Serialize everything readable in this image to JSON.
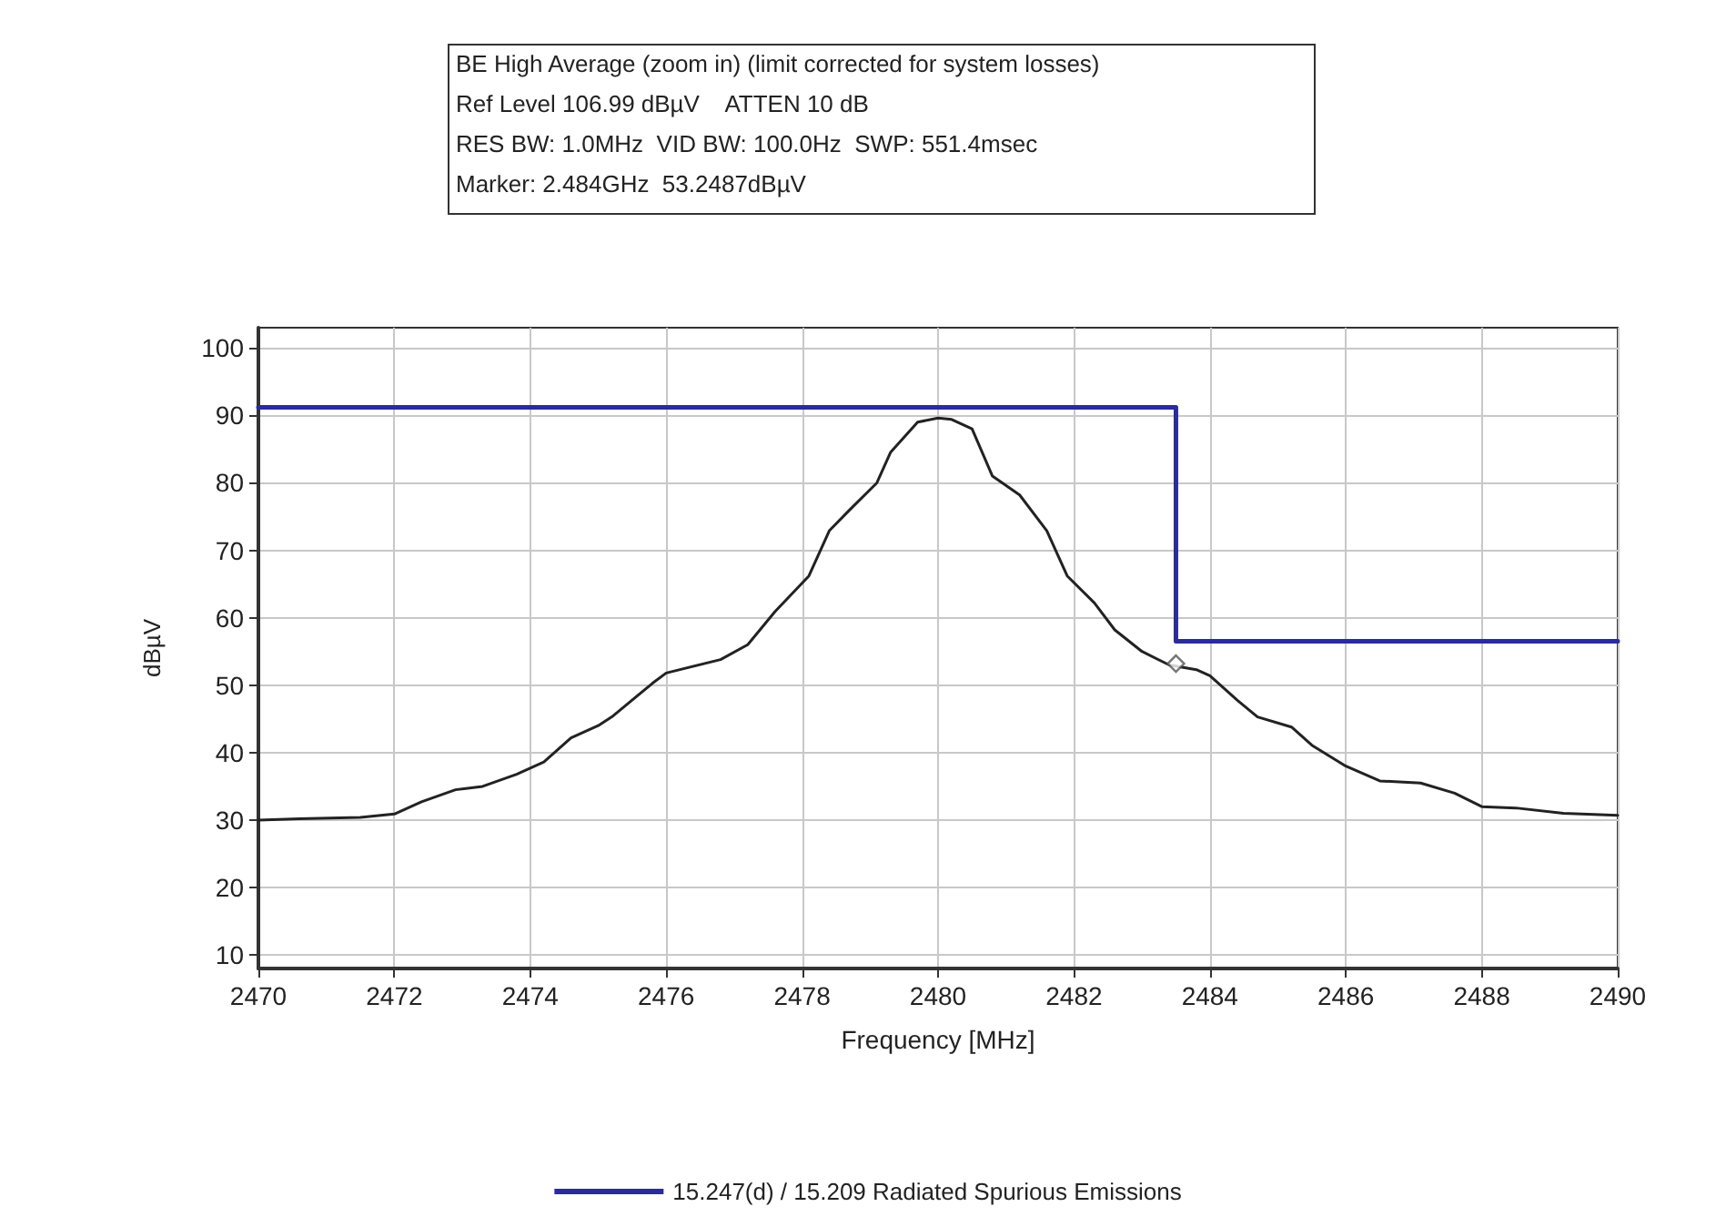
{
  "chart_data": {
    "type": "line",
    "title": "BE High Average (zoom in) (limit corrected for system losses)",
    "annotations": [
      "Ref Level 106.99 dBµV    ATTEN 10 dB",
      "RES BW: 1.0MHz  VID BW: 100.0Hz  SWP: 551.4msec",
      "Marker: 2.484GHz  53.2487dBµV"
    ],
    "xlabel": "Frequency [MHz]",
    "ylabel": "dBµV",
    "xlim": [
      2470,
      2490
    ],
    "xticks": [
      2470,
      2472,
      2474,
      2476,
      2478,
      2480,
      2482,
      2484,
      2486,
      2488,
      2490
    ],
    "ylim": [
      8,
      103
    ],
    "yticks": [
      10,
      20,
      30,
      40,
      50,
      60,
      70,
      80,
      90,
      100
    ],
    "grid": true,
    "legend": "bottom",
    "marker": "none",
    "line_style": "solid",
    "series": [
      {
        "name": "15.247(d) / 15.209 Radiated Spurious Emissions",
        "color": "#2b2b9a",
        "x": [
          2470,
          2483.5,
          2483.5,
          2490
        ],
        "values": [
          91.2,
          91.2,
          56.5,
          56.5
        ]
      },
      {
        "color": "#222222",
        "x": [
          2470,
          2470.6,
          2471.5,
          2472,
          2472.4,
          2472.9,
          2473.3,
          2473.8,
          2474.2,
          2474.6,
          2475,
          2475.2,
          2475.8,
          2476,
          2476.8,
          2477.2,
          2477.6,
          2478.1,
          2478.4,
          2478.7,
          2479.1,
          2479.3,
          2479.7,
          2480,
          2480.2,
          2480.5,
          2480.8,
          2481.2,
          2481.6,
          2481.9,
          2482.3,
          2482.6,
          2483,
          2483.4,
          2483.8,
          2484,
          2484.4,
          2484.7,
          2485.2,
          2485.5,
          2486,
          2486.5,
          2487.1,
          2487.6,
          2488,
          2488.5,
          2489.2,
          2490
        ],
        "values": [
          30,
          30.2,
          30.4,
          30.9,
          32.7,
          34.5,
          35,
          36.8,
          38.6,
          42.2,
          44,
          45.3,
          50.3,
          51.8,
          53.8,
          56,
          60.9,
          66.2,
          72.9,
          76,
          80,
          84.5,
          89,
          89.6,
          89.4,
          88,
          81,
          78.2,
          72.9,
          66.2,
          62.2,
          58.2,
          55,
          53,
          52.3,
          51.4,
          47.8,
          45.3,
          43.8,
          41.1,
          38,
          35.8,
          35.5,
          34,
          32,
          31.8,
          31,
          30.7
        ]
      },
      {
        "type": "scatter",
        "marker": "diamond",
        "color": "#555555",
        "x": [
          2483.5
        ],
        "values": [
          53.2
        ]
      }
    ]
  }
}
